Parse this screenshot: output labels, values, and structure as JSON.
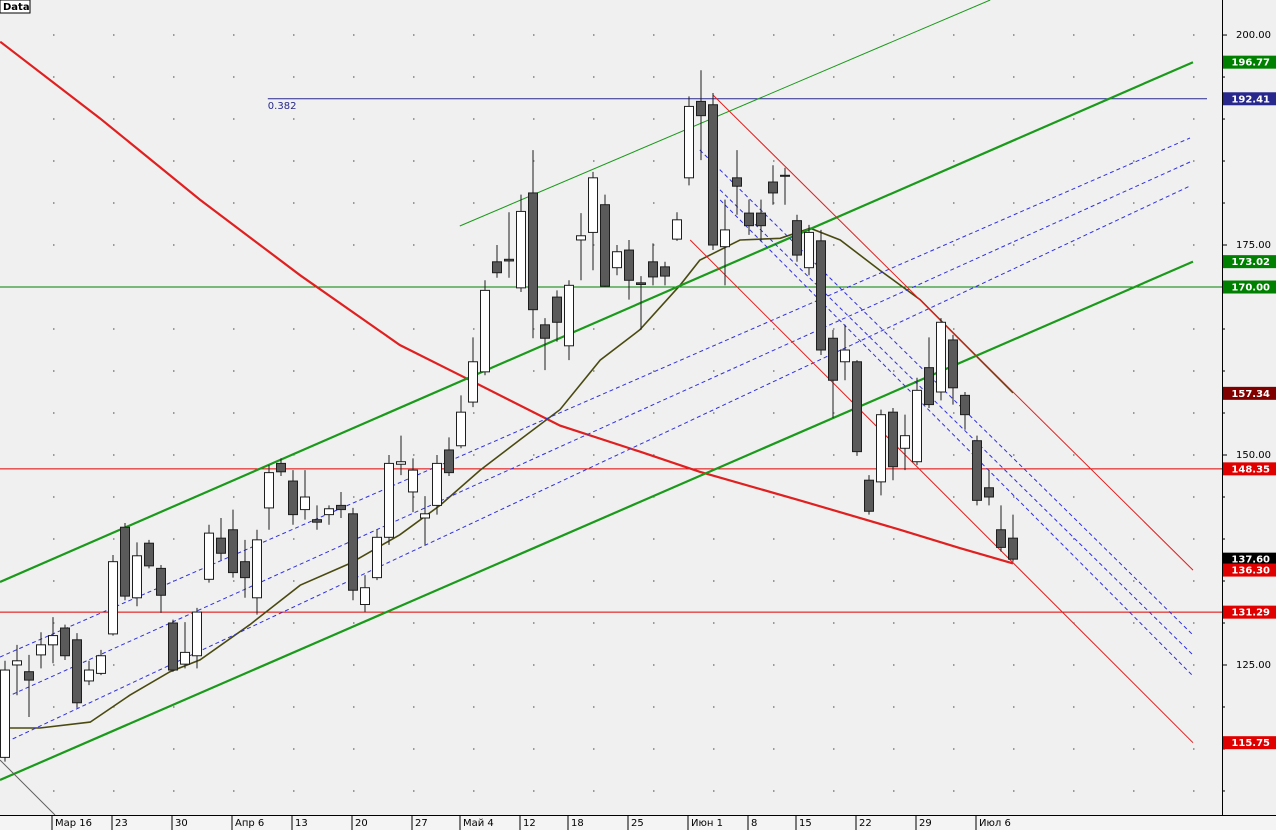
{
  "chart_data": {
    "type": "candlestick",
    "title": "Data",
    "categories": [
      null,
      null,
      null,
      null,
      "Мар 16",
      null,
      null,
      null,
      null,
      "23",
      null,
      null,
      null,
      null,
      "30",
      null,
      null,
      null,
      null,
      "Апр 6",
      null,
      null,
      null,
      null,
      "13",
      null,
      null,
      null,
      null,
      "20",
      null,
      null,
      null,
      null,
      "27",
      null,
      null,
      null,
      "Май 4",
      null,
      null,
      null,
      null,
      "12",
      null,
      null,
      null,
      "18",
      null,
      null,
      null,
      null,
      "25",
      null,
      null,
      null,
      null,
      "Июн 1",
      null,
      null,
      null,
      null,
      "8",
      null,
      null,
      null,
      "15",
      null,
      null,
      null,
      null,
      "22",
      null,
      null,
      null,
      null,
      "29",
      null,
      null,
      null,
      null,
      "Июл 6",
      null,
      null,
      null
    ],
    "open": [
      114.0,
      125.0,
      124.2,
      126.2,
      127.4,
      129.4,
      128.0,
      123.1,
      124.0,
      128.7,
      141.4,
      133.0,
      139.5,
      136.5,
      130.0,
      125.1,
      126.1,
      135.2,
      140.1,
      141.1,
      137.3,
      133.0,
      143.7,
      149.0,
      146.9,
      143.5,
      142.3,
      142.9,
      144.0,
      143.0,
      132.2,
      135.4,
      140.2,
      148.9,
      145.6,
      142.5,
      144.0,
      150.6,
      151.1,
      156.3,
      159.9,
      173.0,
      173.3,
      169.9,
      181.2,
      165.5,
      168.8,
      163.0,
      175.6,
      176.5,
      179.8,
      172.3,
      174.4,
      170.5,
      173.0,
      172.4,
      175.7,
      183.0,
      192.1,
      191.7,
      174.8,
      183.0,
      178.8,
      178.8,
      182.5,
      183.2,
      177.9,
      172.3,
      175.5,
      163.9,
      161.1,
      161.1,
      147.0,
      146.8,
      155.1,
      150.8,
      149.2,
      160.4,
      157.5,
      163.7,
      157.1,
      151.7,
      146.1,
      141.1,
      140.1
    ],
    "high": [
      125.5,
      127.4,
      126.2,
      128.9,
      130.7,
      129.8,
      128.8,
      125.5,
      126.8,
      138.1,
      141.9,
      139.6,
      139.9,
      136.9,
      130.4,
      130.1,
      131.8,
      141.7,
      142.5,
      143.5,
      139.9,
      141.1,
      148.8,
      149.6,
      148.2,
      148.2,
      144.0,
      144.0,
      145.6,
      143.7,
      135.7,
      141.1,
      150.0,
      152.3,
      149.6,
      145.1,
      150.0,
      152.1,
      157.1,
      164.0,
      170.8,
      175.0,
      178.9,
      181.0,
      186.3,
      166.3,
      169.6,
      170.8,
      178.8,
      183.7,
      181.0,
      175.0,
      175.6,
      171.3,
      175.2,
      173.0,
      178.9,
      192.7,
      195.8,
      193.1,
      180.4,
      186.3,
      180.4,
      180.4,
      184.5,
      184.2,
      178.6,
      177.4,
      176.8,
      164.9,
      165.5,
      161.3,
      147.6,
      155.4,
      155.6,
      154.8,
      159.2,
      164.0,
      166.3,
      164.3,
      157.5,
      152.3,
      148.2,
      144.0,
      142.9
    ],
    "low": [
      113.5,
      121.4,
      118.8,
      124.6,
      125.2,
      125.6,
      119.9,
      122.6,
      123.8,
      128.5,
      132.7,
      132.0,
      136.5,
      131.2,
      124.2,
      124.6,
      124.6,
      134.8,
      137.5,
      135.4,
      133.0,
      131.0,
      141.1,
      147.5,
      141.7,
      142.3,
      141.1,
      141.7,
      142.5,
      132.7,
      131.3,
      135.1,
      139.3,
      147.6,
      143.2,
      139.3,
      142.9,
      147.5,
      150.8,
      155.7,
      159.5,
      171.1,
      171.1,
      169.4,
      163.9,
      160.1,
      163.5,
      161.3,
      170.8,
      172.0,
      170.0,
      171.4,
      168.5,
      164.9,
      170.2,
      170.2,
      175.5,
      182.1,
      185.1,
      174.4,
      170.2,
      178.6,
      176.2,
      175.4,
      179.8,
      179.8,
      173.0,
      171.4,
      161.9,
      154.4,
      158.9,
      149.9,
      142.9,
      145.2,
      147.0,
      148.2,
      148.8,
      155.6,
      156.5,
      156.0,
      153.0,
      144.0,
      144.0,
      138.5,
      137.3
    ],
    "close": [
      124.4,
      125.5,
      123.2,
      127.4,
      128.5,
      126.1,
      120.5,
      124.4,
      126.1,
      137.3,
      133.2,
      138.0,
      136.8,
      133.3,
      124.4,
      126.5,
      131.3,
      140.7,
      138.3,
      136.0,
      135.4,
      139.9,
      147.9,
      148.0,
      142.9,
      145.0,
      142.0,
      143.6,
      143.5,
      133.9,
      134.2,
      140.2,
      149.0,
      149.2,
      148.2,
      143.0,
      149.0,
      147.9,
      155.1,
      161.1,
      169.6,
      171.7,
      173.1,
      179.0,
      167.3,
      163.9,
      165.8,
      170.2,
      176.1,
      183.0,
      170.1,
      174.2,
      170.8,
      170.3,
      171.2,
      171.3,
      178.0,
      191.5,
      190.4,
      175.0,
      176.8,
      182.0,
      177.3,
      177.3,
      181.2,
      183.3,
      173.8,
      176.5,
      162.5,
      158.9,
      162.5,
      150.4,
      143.3,
      154.8,
      148.6,
      152.3,
      157.7,
      156.0,
      165.8,
      158.0,
      154.8,
      144.6,
      145.0,
      139.0,
      137.6
    ],
    "up_color": "#ffffff",
    "down_color": "#5a5a5a",
    "ylim": [
      107.14,
      204.17
    ],
    "yticks": [
      {
        "value": 125,
        "label": "125.00"
      },
      {
        "value": 150,
        "label": "150.00"
      },
      {
        "value": 175,
        "label": "175.00"
      },
      {
        "value": 200,
        "label": "200.00"
      }
    ],
    "minor_yticks": [
      110,
      115,
      120,
      130,
      135,
      140,
      145,
      155,
      160,
      165,
      170,
      180,
      185,
      190,
      195
    ],
    "grid": "dotted",
    "lines": [
      {
        "color": "#e02020",
        "width": 2.2,
        "x": [
          -0.4,
          7.9,
          16.25,
          24.6,
          32.9,
          38.75,
          46.25,
          52.9,
          57.9,
          66.25,
          74.6,
          79.6,
          84
        ],
        "values": [
          199.2,
          190.1,
          180.4,
          171.4,
          163.1,
          158.9,
          153.5,
          150.4,
          148.0,
          144.6,
          141.1,
          138.9,
          137.1
        ]
      },
      {
        "color": "#4a4a10",
        "width": 1.6,
        "x": [
          0,
          2.9,
          7.1,
          10.4,
          13.75,
          16.25,
          20.4,
          24.6,
          28.75,
          32.9,
          36.25,
          39.6,
          42.9,
          46.25,
          49.6,
          52.9,
          56.25,
          57.9,
          61.25,
          64.6,
          67.1,
          69.6,
          72.9,
          76.25,
          79.6,
          84
        ],
        "values": [
          117.5,
          117.5,
          118.2,
          121.4,
          124.2,
          125.6,
          129.8,
          134.5,
          137.1,
          140.5,
          144.0,
          148.2,
          151.8,
          155.4,
          161.3,
          164.9,
          170.2,
          173.2,
          175.6,
          175.8,
          177.0,
          175.6,
          172.0,
          168.5,
          163.7,
          157.4
        ]
      },
      {
        "color": "#1a9a1a",
        "width": 2.2,
        "x": [
          -0.42,
          99
        ],
        "values": [
          134.88,
          196.77
        ]
      },
      {
        "color": "#1a9a1a",
        "width": 2.2,
        "x": [
          -0.42,
          99
        ],
        "values": [
          111.31,
          173.02
        ]
      },
      {
        "color": "#1a9a1a",
        "width": 1,
        "x": [
          37.9,
          82.1
        ],
        "values": [
          177.26,
          204.17
        ]
      },
      {
        "color": "#3030e0",
        "width": 1,
        "dashed": true,
        "x": [
          -0.42,
          98.75
        ],
        "values": [
          125.95,
          187.74
        ]
      },
      {
        "color": "#3030e0",
        "width": 1,
        "dashed": true,
        "x": [
          -0.42,
          98.75
        ],
        "values": [
          120.83,
          184.88
        ]
      },
      {
        "color": "#3030e0",
        "width": 1,
        "dashed": true,
        "x": [
          -0.42,
          98.75
        ],
        "values": [
          115.48,
          182.02
        ]
      },
      {
        "color": "#e02020",
        "width": 1,
        "x": [
          59,
          99
        ],
        "values": [
          192.86,
          136.3
        ]
      },
      {
        "color": "#e02020",
        "width": 1,
        "x": [
          57.1,
          99
        ],
        "values": [
          175.6,
          115.75
        ]
      },
      {
        "color": "#3030e0",
        "width": 1,
        "dashed": true,
        "x": [
          57.9,
          99
        ],
        "values": [
          186.31,
          128.57
        ]
      },
      {
        "color": "#3030e0",
        "width": 1,
        "dashed": true,
        "x": [
          58.75,
          99
        ],
        "values": [
          182.74,
          126.19
        ]
      },
      {
        "color": "#3030e0",
        "width": 1,
        "dashed": true,
        "x": [
          59.6,
          99
        ],
        "values": [
          180.36,
          123.69
        ]
      },
      {
        "color": "#606060",
        "width": 1,
        "x": [
          -0.42,
          4.17
        ],
        "values": [
          113.69,
          107.14
        ]
      }
    ],
    "price_labels": [
      {
        "value": 196.77,
        "color": "#008000"
      },
      {
        "value": 192.41,
        "color": "#28288c",
        "line": true,
        "start": 21.9,
        "level_label": "0.382"
      },
      {
        "value": 173.02,
        "color": "#008000"
      },
      {
        "value": 170,
        "label": "170.00",
        "color": "#008000",
        "line": true
      },
      {
        "value": 157.34,
        "color": "#800000"
      },
      {
        "value": 148.35,
        "color": "#e00000",
        "line": true
      },
      {
        "value": 137.6,
        "label": "137.60",
        "color": "#000000"
      },
      {
        "value": 136.3,
        "label": "136.30",
        "color": "#e00000"
      },
      {
        "value": 131.29,
        "color": "#e00000",
        "line": true
      },
      {
        "value": 115.75,
        "color": "#e00000"
      }
    ]
  }
}
